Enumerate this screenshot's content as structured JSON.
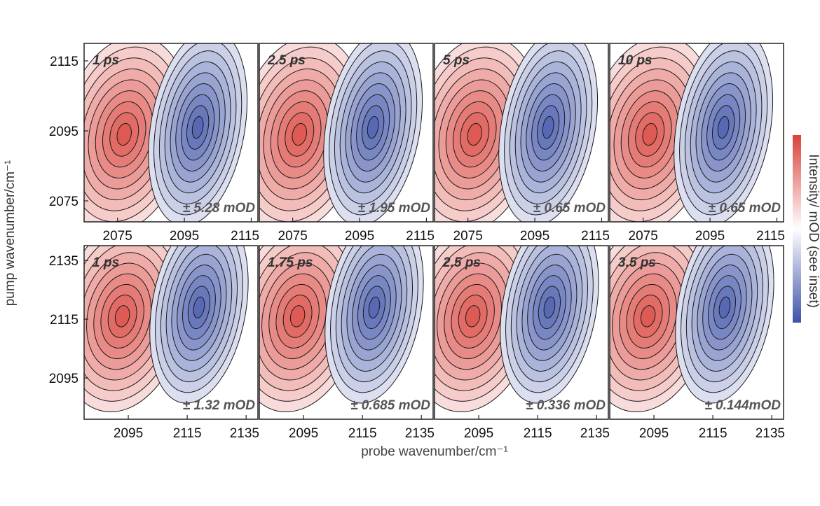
{
  "chart_data": {
    "type": "heatmap",
    "description_kind": "2D-IR spectra grid",
    "ylabel": "pump wavenumber/cm⁻¹",
    "xlabel": "probe wavenumber/cm⁻¹",
    "colorbar_label": "Intensity/ mOD (see inset)",
    "colors": {
      "positive": "#d9413a",
      "negative": "#3d52a8",
      "zero": "#ffffff"
    },
    "rows": [
      {
        "xlim": [
          2065,
          2117
        ],
        "ylim": [
          2069,
          2120
        ],
        "xticks": [
          2075,
          2095,
          2115
        ],
        "yticks": [
          2075,
          2095,
          2115
        ],
        "pos_center": [
          2077,
          2094
        ],
        "neg_center": [
          2099,
          2096
        ],
        "panels": [
          {
            "time": "1 ps",
            "scale": "± 5.28 mOD"
          },
          {
            "time": "2.5 ps",
            "scale": "± 1.95 mOD"
          },
          {
            "time": "5 ps",
            "scale": "± 0.65 mOD"
          },
          {
            "time": "10 ps",
            "scale": "± 0.65 mOD"
          }
        ]
      },
      {
        "xlim": [
          2080,
          2139
        ],
        "ylim": [
          2081,
          2140
        ],
        "xticks": [
          2095,
          2115,
          2135
        ],
        "yticks": [
          2095,
          2115,
          2135
        ],
        "pos_center": [
          2093,
          2116
        ],
        "neg_center": [
          2119,
          2119
        ],
        "panels": [
          {
            "time": "1 ps",
            "scale": "± 1.32 mOD"
          },
          {
            "time": "1.75 ps",
            "scale": "± 0.685 mOD"
          },
          {
            "time": "2.5 ps",
            "scale": "± 0.336 mOD"
          },
          {
            "time": "3.5 ps",
            "scale": "± 0.144mOD"
          }
        ]
      }
    ]
  }
}
